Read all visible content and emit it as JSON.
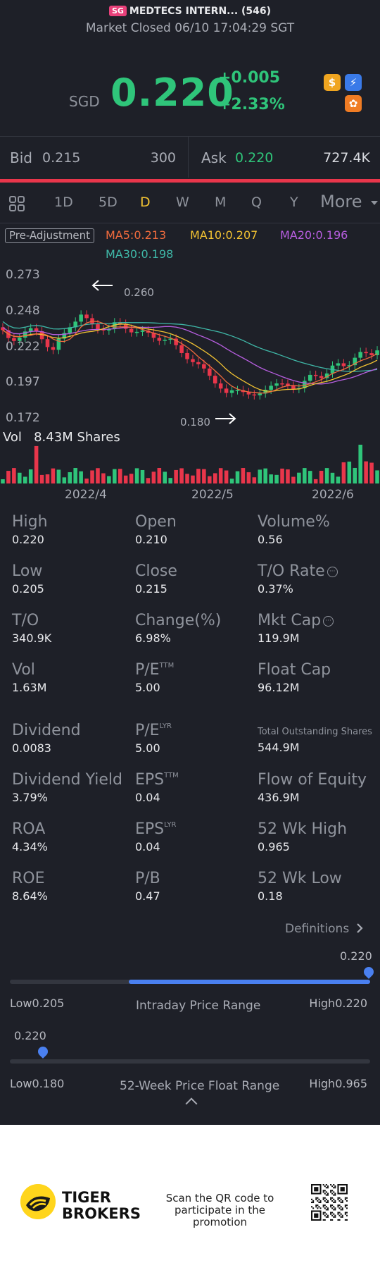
{
  "header": {
    "market_badge": "SG",
    "stock_name": "MEDTECS INTERN... (546)",
    "status": "Market Closed 06/10 17:04:29 SGT"
  },
  "quote": {
    "currency": "SGD",
    "price": "0.220",
    "change": "+0.005",
    "change_pct": "+2.33%",
    "icons": [
      "dollar-badge-icon",
      "lightning-badge-icon",
      "tiger-badge-icon"
    ],
    "icon_glyphs": [
      "$",
      "⚡",
      "✿"
    ]
  },
  "bidask": {
    "bid_label": "Bid",
    "bid_price": "0.215",
    "bid_size": "300",
    "ask_label": "Ask",
    "ask_price": "0.220",
    "ask_size": "727.4K"
  },
  "tabs": {
    "items": [
      "1D",
      "5D",
      "D",
      "W",
      "M",
      "Q",
      "Y"
    ],
    "active": "D",
    "more": "More"
  },
  "indicators": {
    "adjustment": "Pre-Adjustment",
    "ma5": "MA5:0.213",
    "ma10": "MA10:0.207",
    "ma20": "MA20:0.196",
    "ma30": "MA30:0.198"
  },
  "chart": {
    "y_ticks": [
      "0.273",
      "0.248",
      "0.222",
      "0.197",
      "0.172"
    ],
    "high_marker": "0.260",
    "low_marker": "0.180",
    "vol_label": "Vol",
    "vol_value": "8.43M Shares",
    "x_ticks": [
      "2022/4",
      "2022/5",
      "2022/6"
    ]
  },
  "chart_data": {
    "type": "candlestick",
    "y_range": [
      0.172,
      0.273
    ],
    "x_labels": [
      "2022/4",
      "2022/5",
      "2022/6"
    ],
    "high_marker": 0.26,
    "low_marker": 0.18,
    "colors": {
      "up": "#2fc57a",
      "down": "#e9364b",
      "ma5": "#f06b3d",
      "ma10": "#f2c232",
      "ma20": "#b75ee0",
      "ma30": "#3fb8a8"
    }
  },
  "stats": [
    {
      "label": "High",
      "value": "0.220"
    },
    {
      "label": "Open",
      "value": "0.210"
    },
    {
      "label": "Volume%",
      "value": "0.56"
    },
    {
      "label": "Low",
      "value": "0.205"
    },
    {
      "label": "Close",
      "value": "0.215"
    },
    {
      "label": "T/O Rate",
      "value": "0.37%"
    },
    {
      "label": "T/O",
      "value": "340.9K"
    },
    {
      "label": "Change(%)",
      "value": "6.98%"
    },
    {
      "label": "Mkt Cap",
      "value": "119.9M"
    },
    {
      "label": "Vol",
      "value": "1.63M"
    },
    {
      "label": "P/E",
      "sup": "TTM",
      "value": "5.00"
    },
    {
      "label": "Float Cap",
      "value": "96.12M"
    },
    {
      "label": "Dividend",
      "value": "0.0083"
    },
    {
      "label": "P/E",
      "sup": "LYR",
      "value": "5.00"
    },
    {
      "label": "Total Outstanding Shares",
      "value": "544.9M"
    },
    {
      "label": "Dividend Yield",
      "value": "3.79%"
    },
    {
      "label": "EPS",
      "sup": "TTM",
      "value": "0.04"
    },
    {
      "label": "Flow of Equity",
      "value": "436.9M"
    },
    {
      "label": "ROA",
      "value": "4.34%"
    },
    {
      "label": "EPS",
      "sup": "LYR",
      "value": "0.04"
    },
    {
      "label": "52 Wk High",
      "value": "0.965"
    },
    {
      "label": "ROE",
      "value": "8.64%"
    },
    {
      "label": "P/B",
      "value": "0.47"
    },
    {
      "label": "52 Wk Low",
      "value": "0.18"
    }
  ],
  "definitions": "Definitions",
  "intraday": {
    "current": "0.220",
    "low": "Low0.205",
    "title": "Intraday Price Range",
    "high": "High0.220",
    "fill_start": 0.33,
    "fill_end": 1.0,
    "marker": 1.0
  },
  "week52": {
    "current": "0.220",
    "low": "Low0.180",
    "title": "52-Week Price Float Range",
    "high": "High0.965",
    "marker": 0.05
  },
  "footer": {
    "brand_line1": "TIGER",
    "brand_line2": "BROKERS",
    "scan_line1": "Scan the QR code to",
    "scan_line2": "participate in the promotion"
  }
}
